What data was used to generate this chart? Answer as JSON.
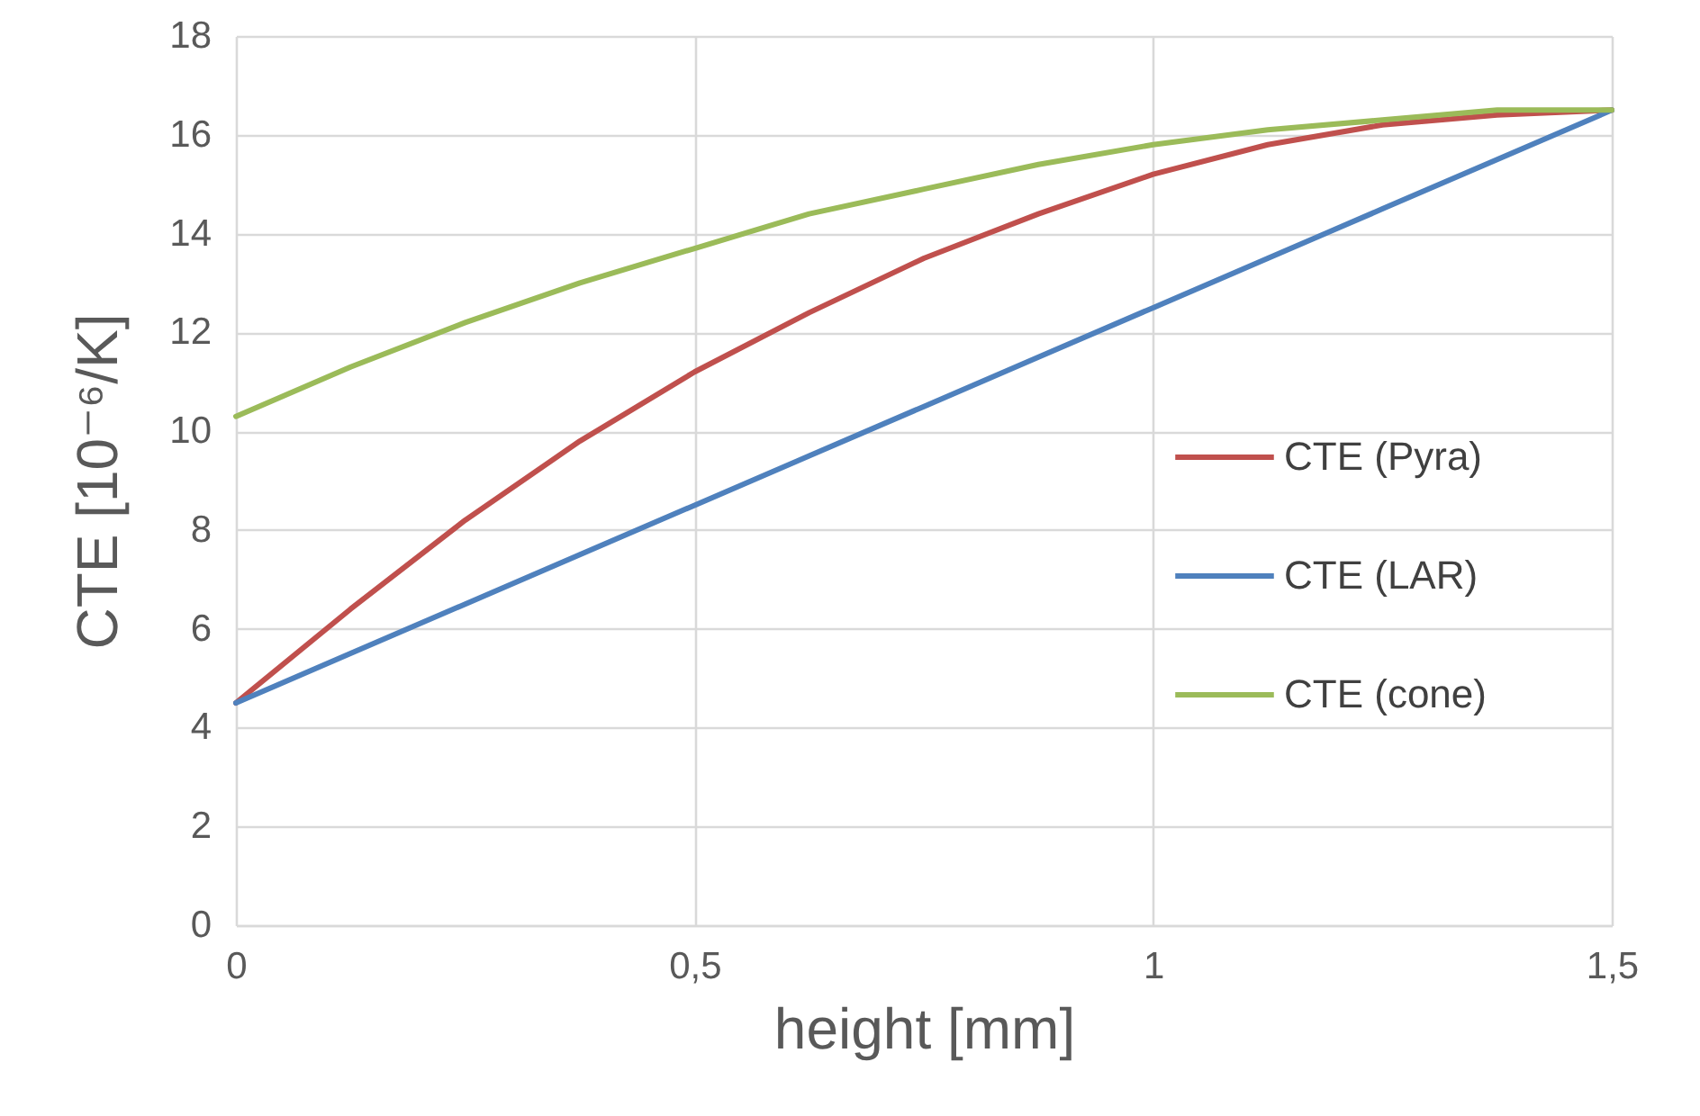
{
  "chart_data": {
    "type": "line",
    "xlabel": "height [mm]",
    "ylabel": "CTE [10⁻⁶/K]",
    "x": [
      0,
      0.125,
      0.25,
      0.375,
      0.5,
      0.625,
      0.75,
      0.875,
      1,
      1.125,
      1.25,
      1.375,
      1.5
    ],
    "series": [
      {
        "name": "CTE (Pyra)",
        "color": "#c0504d",
        "values": [
          4.5,
          6.4,
          8.2,
          9.8,
          11.2,
          12.4,
          13.5,
          14.4,
          15.2,
          15.8,
          16.2,
          16.4,
          16.5
        ]
      },
      {
        "name": "CTE (LAR)",
        "color": "#4f81bd",
        "values": [
          4.5,
          5.5,
          6.5,
          7.5,
          8.5,
          9.5,
          10.5,
          11.5,
          12.5,
          13.5,
          14.5,
          15.5,
          16.5
        ]
      },
      {
        "name": "CTE (cone)",
        "color": "#9bbb59",
        "values": [
          10.3,
          11.3,
          12.2,
          13.0,
          13.7,
          14.4,
          14.9,
          15.4,
          15.8,
          16.1,
          16.3,
          16.5,
          16.5
        ]
      }
    ],
    "xlim": [
      0,
      1.5
    ],
    "xticks": [
      0,
      {
        "value": 0.5,
        "label": "0,5"
      },
      1,
      {
        "value": 1.5,
        "label": "1,5"
      }
    ],
    "ylim": [
      0,
      18
    ],
    "yticks": [
      0,
      2,
      4,
      6,
      8,
      10,
      12,
      14,
      16,
      18
    ],
    "grid": true,
    "legend": "right",
    "marker": "none",
    "line_style": "solid"
  }
}
